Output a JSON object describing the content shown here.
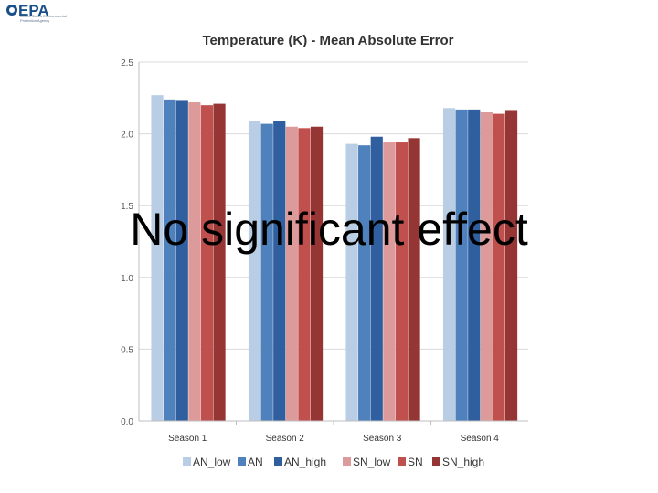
{
  "logo": {
    "name": "EPA",
    "subtitle": "United States Environmental Protection Agency"
  },
  "overlay_text": "No significant effect",
  "chart_data": {
    "type": "bar",
    "title": "Temperature (K) - Mean Absolute Error",
    "xlabel": "",
    "ylabel": "",
    "ylim": [
      0,
      2.5
    ],
    "yticks": [
      "0.0",
      "0.5",
      "1.0",
      "1.5",
      "2.0",
      "2.5"
    ],
    "grid": true,
    "legend": "bottom",
    "categories": [
      "Season 1",
      "Season 2",
      "Season 3",
      "Season 4"
    ],
    "series": [
      {
        "name": "AN_low",
        "color": "#b9cde5",
        "values": [
          2.27,
          2.09,
          1.93,
          2.18
        ]
      },
      {
        "name": "AN",
        "color": "#4f81bd",
        "values": [
          2.24,
          2.07,
          1.92,
          2.17
        ]
      },
      {
        "name": "AN_high",
        "color": "#2f5f9e",
        "values": [
          2.23,
          2.09,
          1.98,
          2.17
        ]
      },
      {
        "name": "SN_low",
        "color": "#dc9b9a",
        "values": [
          2.22,
          2.05,
          1.94,
          2.15
        ]
      },
      {
        "name": "SN",
        "color": "#c0504d",
        "values": [
          2.2,
          2.04,
          1.94,
          2.14
        ]
      },
      {
        "name": "SN_high",
        "color": "#963634",
        "values": [
          2.21,
          2.05,
          1.97,
          2.16
        ]
      }
    ]
  }
}
